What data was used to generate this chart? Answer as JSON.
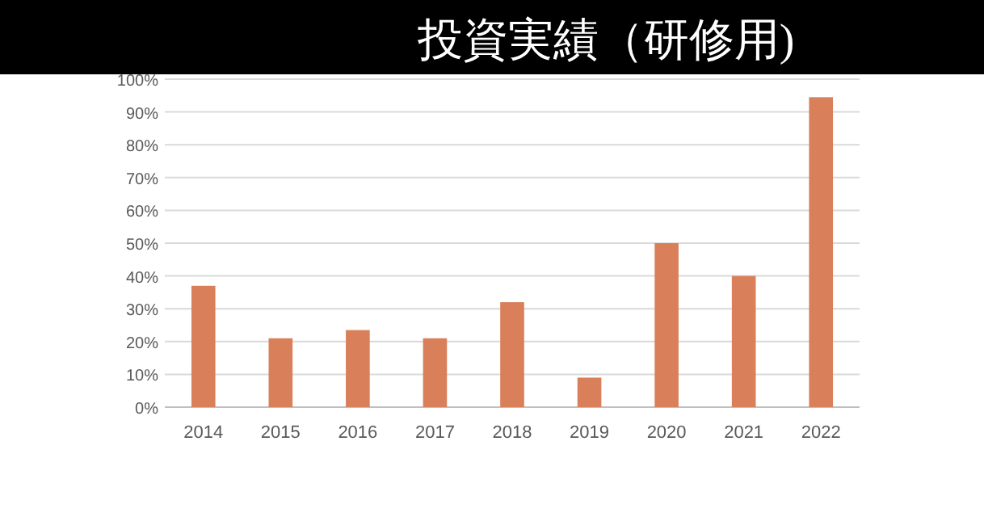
{
  "chart_data": {
    "type": "bar",
    "title": "投資実績（研修用)",
    "categories": [
      "2014",
      "2015",
      "2016",
      "2017",
      "2018",
      "2019",
      "2020",
      "2021",
      "2022"
    ],
    "values": [
      37,
      21,
      23.5,
      21,
      32,
      9,
      50,
      40,
      94.5
    ],
    "color": "#d9805a",
    "ylim": [
      0,
      100
    ],
    "yticks": [
      {
        "value": 0,
        "label": "0%"
      },
      {
        "value": 10,
        "label": "10%"
      },
      {
        "value": 20,
        "label": "20%"
      },
      {
        "value": 30,
        "label": "30%"
      },
      {
        "value": 40,
        "label": "40%"
      },
      {
        "value": 50,
        "label": "50%"
      },
      {
        "value": 60,
        "label": "60%"
      },
      {
        "value": 70,
        "label": "70%"
      },
      {
        "value": 80,
        "label": "80%"
      },
      {
        "value": 90,
        "label": "90%"
      },
      {
        "value": 100,
        "label": "100%"
      }
    ],
    "grid": "y"
  }
}
